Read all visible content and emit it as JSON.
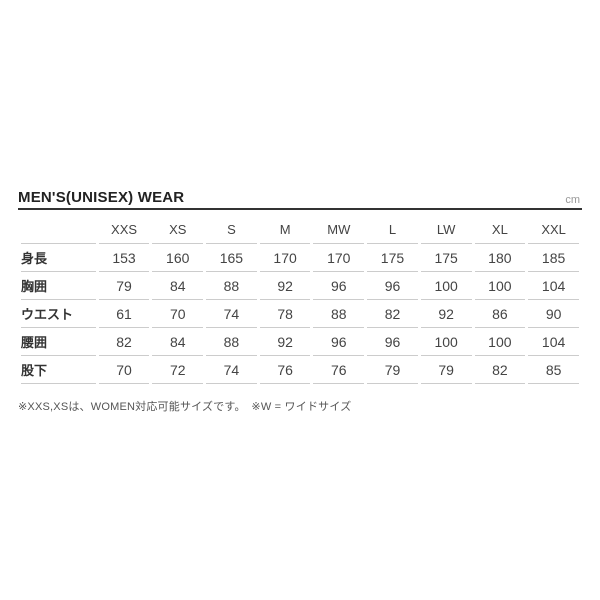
{
  "chart_data": {
    "type": "table",
    "title": "MEN'S(UNISEX) WEAR",
    "unit": "cm",
    "columns": [
      "XXS",
      "XS",
      "S",
      "M",
      "MW",
      "L",
      "LW",
      "XL",
      "XXL"
    ],
    "rows": [
      {
        "label": "身長",
        "values": [
          153,
          160,
          165,
          170,
          170,
          175,
          175,
          180,
          185
        ]
      },
      {
        "label": "胸囲",
        "values": [
          79,
          84,
          88,
          92,
          96,
          96,
          100,
          100,
          104
        ]
      },
      {
        "label": "ウエスト",
        "values": [
          61,
          70,
          74,
          78,
          88,
          82,
          92,
          86,
          90
        ]
      },
      {
        "label": "腰囲",
        "values": [
          82,
          84,
          88,
          92,
          96,
          96,
          100,
          100,
          104
        ]
      },
      {
        "label": "股下",
        "values": [
          70,
          72,
          74,
          76,
          76,
          79,
          79,
          82,
          85
        ]
      }
    ],
    "footnote": "※XXS,XSは、WOMEN対応可能サイズです。　※W = ワイドサイズ"
  }
}
